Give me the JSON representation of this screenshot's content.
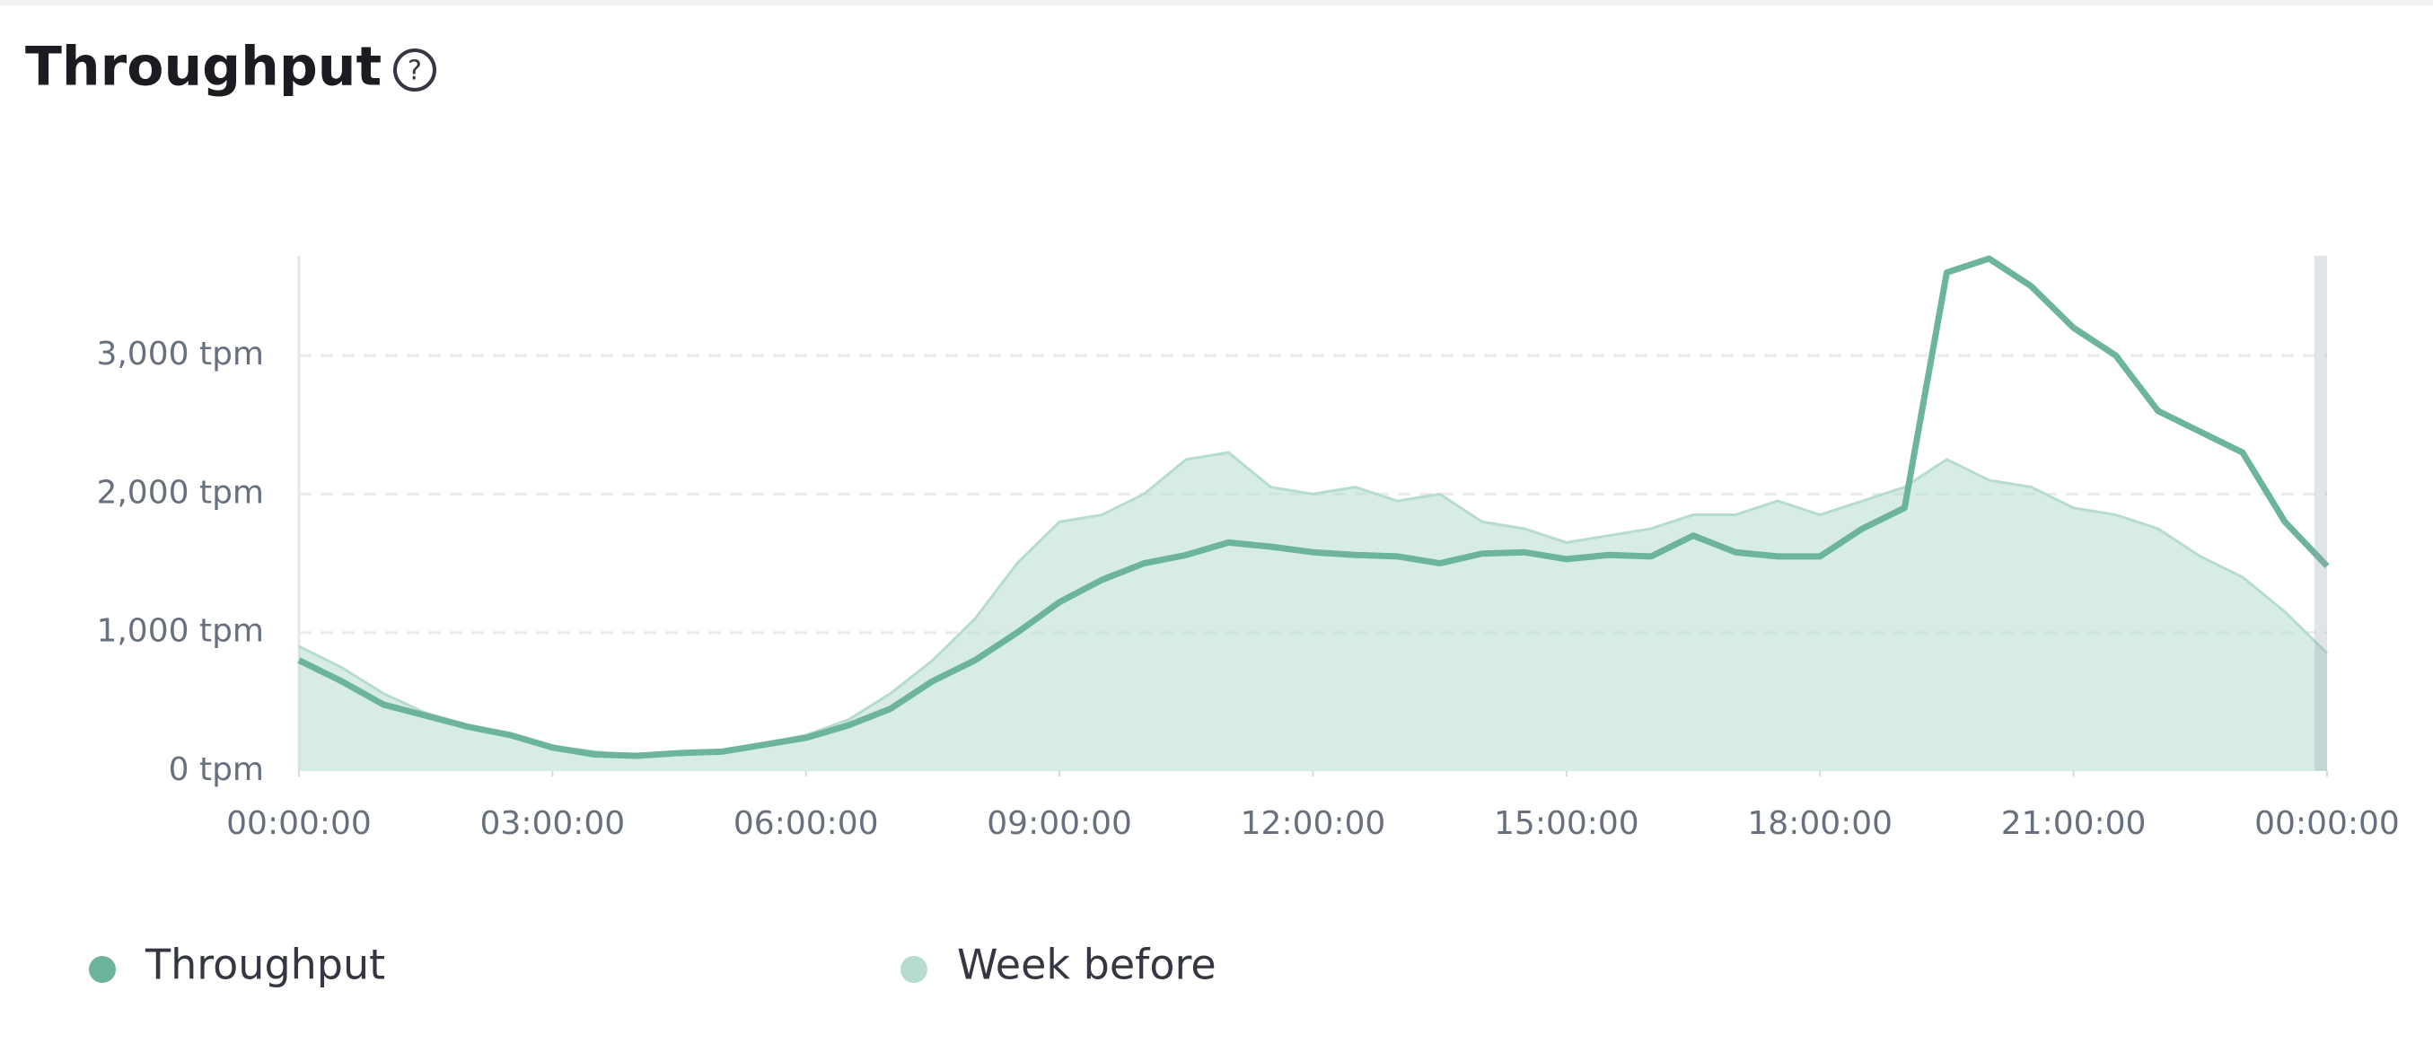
{
  "chart_data": {
    "type": "line",
    "title": "Throughput",
    "x": [
      0,
      0.5,
      1,
      1.5,
      2,
      2.5,
      3,
      3.5,
      4,
      4.5,
      5,
      5.5,
      6,
      6.5,
      7,
      7.5,
      8,
      8.5,
      9,
      9.5,
      10,
      10.5,
      11,
      11.5,
      12,
      12.5,
      13,
      13.5,
      14,
      14.5,
      15,
      15.5,
      16,
      16.5,
      17,
      17.5,
      18,
      18.5,
      19,
      19.5,
      20,
      20.5,
      21,
      21.5,
      22,
      22.5,
      23,
      23.5,
      24
    ],
    "series": [
      {
        "name": "Throughput",
        "color": "#6db59a",
        "values": [
          800,
          650,
          480,
          400,
          320,
          260,
          170,
          120,
          110,
          130,
          140,
          190,
          240,
          330,
          450,
          650,
          800,
          1000,
          1220,
          1380,
          1500,
          1560,
          1650,
          1620,
          1580,
          1560,
          1550,
          1500,
          1570,
          1580,
          1530,
          1560,
          1550,
          1700,
          1580,
          1550,
          1550,
          1750,
          1900,
          3600,
          3700,
          3500,
          3200,
          3000,
          2600,
          2450,
          2300,
          1800,
          1480
        ]
      },
      {
        "name": "Week before",
        "color": "#b6dccd",
        "values": [
          900,
          750,
          560,
          420,
          330,
          250,
          180,
          140,
          110,
          140,
          150,
          200,
          260,
          370,
          560,
          800,
          1100,
          1500,
          1800,
          1850,
          2000,
          2250,
          2300,
          2050,
          2000,
          2050,
          1950,
          2000,
          1800,
          1750,
          1650,
          1700,
          1750,
          1850,
          1850,
          1950,
          1850,
          1950,
          2050,
          2250,
          2100,
          2050,
          1900,
          1850,
          1750,
          1550,
          1400,
          1150,
          850
        ]
      }
    ],
    "xlim": [
      0,
      24
    ],
    "xticks": [
      {
        "value": 0,
        "label": "00:00:00"
      },
      {
        "value": 3,
        "label": "03:00:00"
      },
      {
        "value": 6,
        "label": "06:00:00"
      },
      {
        "value": 9,
        "label": "09:00:00"
      },
      {
        "value": 12,
        "label": "12:00:00"
      },
      {
        "value": 15,
        "label": "15:00:00"
      },
      {
        "value": 18,
        "label": "18:00:00"
      },
      {
        "value": 21,
        "label": "21:00:00"
      },
      {
        "value": 24,
        "label": "00:00:00"
      }
    ],
    "ylim": [
      0,
      3720
    ],
    "yticks": [
      {
        "value": 0,
        "label": "0 tpm"
      },
      {
        "value": 1000,
        "label": "1,000 tpm"
      },
      {
        "value": 2000,
        "label": "2,000 tpm"
      },
      {
        "value": 3000,
        "label": "3,000 tpm"
      }
    ],
    "grid": true
  }
}
